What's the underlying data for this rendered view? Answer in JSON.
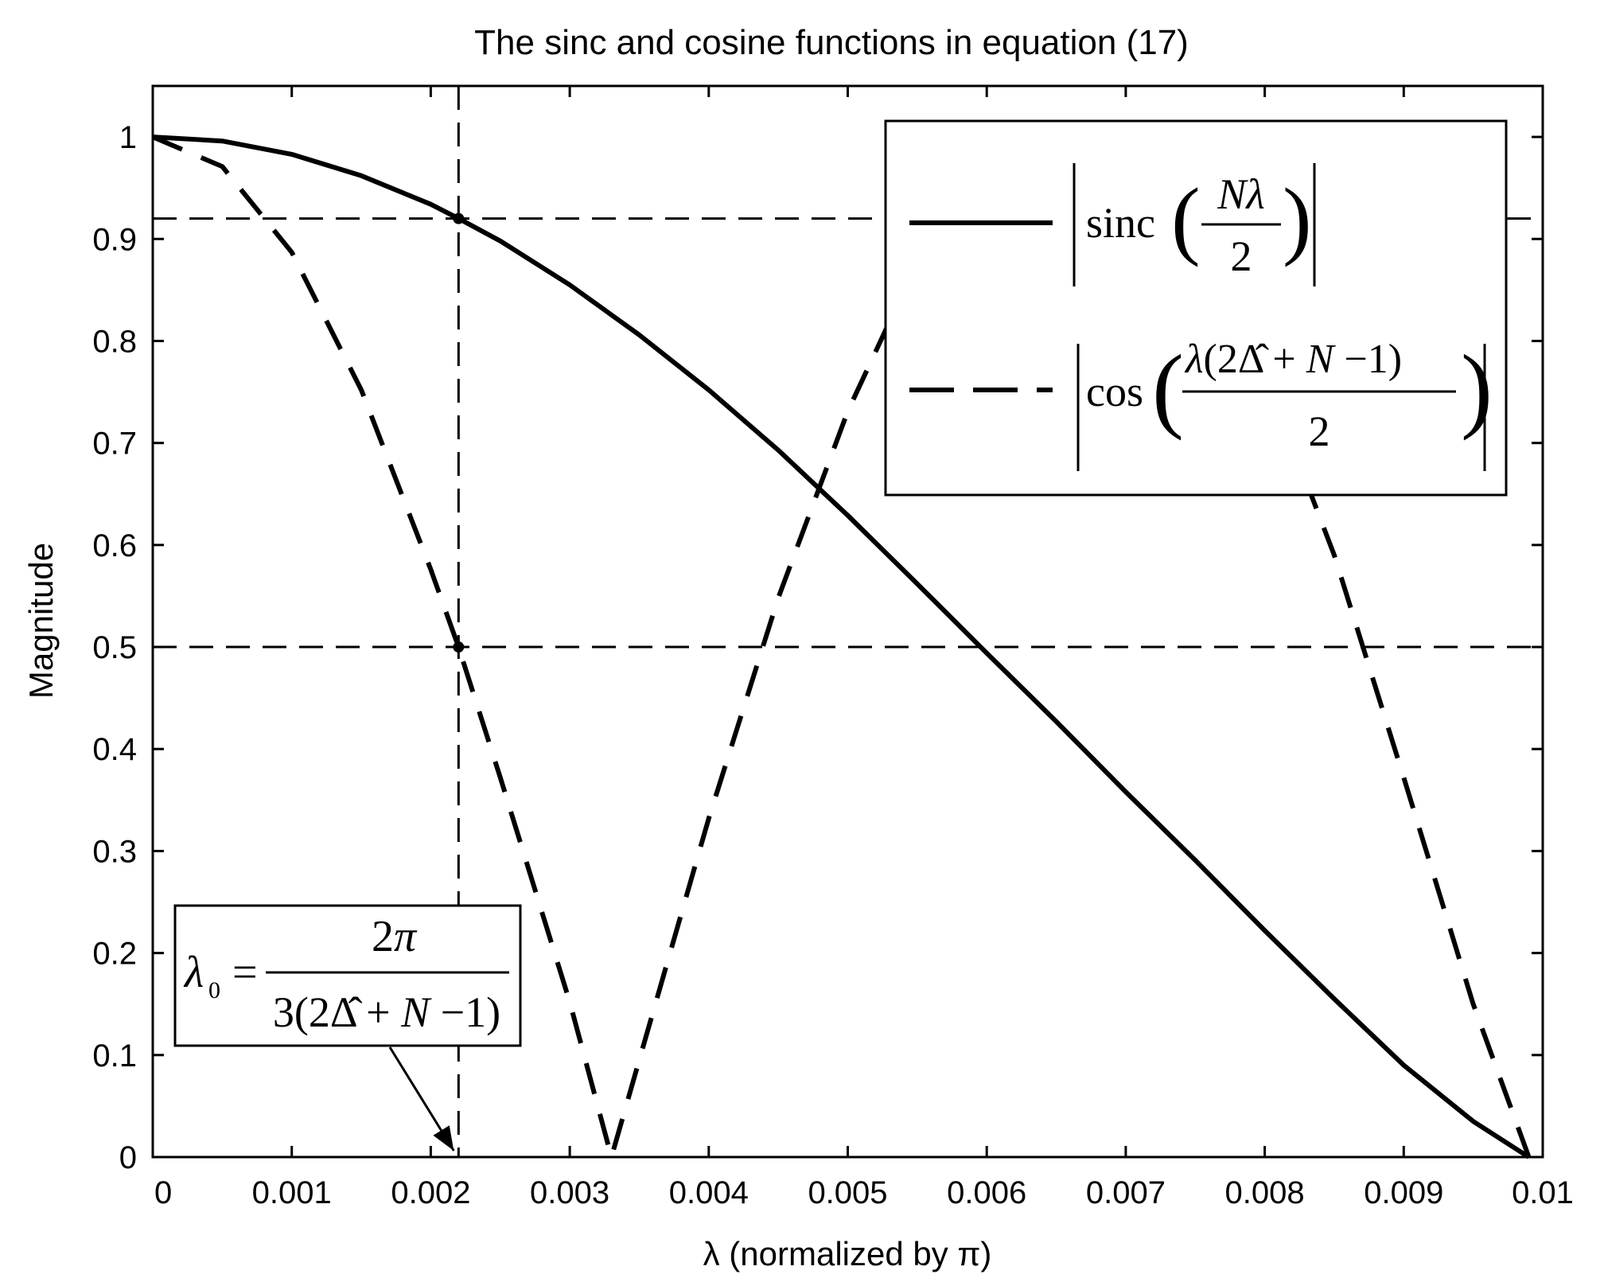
{
  "chart_data": {
    "type": "line",
    "title": "The sinc and cosine functions in equation (17)",
    "xlabel": "λ  (normalized by π)",
    "ylabel": "Magnitude",
    "xlim": [
      0,
      0.01
    ],
    "ylim": [
      0,
      1.05
    ],
    "x_ticks": [
      "0",
      "0.001",
      "0.002",
      "0.003",
      "0.004",
      "0.005",
      "0.006",
      "0.007",
      "0.008",
      "0.009",
      "0.01"
    ],
    "y_ticks": [
      "0",
      "0.1",
      "0.2",
      "0.3",
      "0.4",
      "0.5",
      "0.6",
      "0.7",
      "0.8",
      "0.9",
      "1"
    ],
    "grid": false,
    "legend_position": "top-right",
    "series": [
      {
        "name": "|sinc(Nλ/2)|",
        "style": "solid",
        "x": [
          0,
          0.0005,
          0.001,
          0.0015,
          0.002,
          0.0022,
          0.0025,
          0.003,
          0.0035,
          0.004,
          0.0045,
          0.005,
          0.0055,
          0.006,
          0.0065,
          0.007,
          0.0075,
          0.008,
          0.0085,
          0.009,
          0.0095,
          0.0099
        ],
        "values": [
          1.0,
          0.996,
          0.983,
          0.962,
          0.934,
          0.92,
          0.898,
          0.855,
          0.806,
          0.752,
          0.693,
          0.629,
          0.562,
          0.494,
          0.427,
          0.358,
          0.291,
          0.222,
          0.155,
          0.09,
          0.035,
          0.0
        ]
      },
      {
        "name": "|cos(λ(2Δ̂+N−1)/2)|",
        "style": "dashed",
        "x": [
          0,
          0.0005,
          0.001,
          0.0015,
          0.002,
          0.0022,
          0.0025,
          0.003,
          0.0033,
          0.0035,
          0.004,
          0.0045,
          0.005,
          0.0055,
          0.006,
          0.0066,
          0.007,
          0.0075,
          0.008,
          0.0085,
          0.009,
          0.0095,
          0.0099
        ],
        "values": [
          1.0,
          0.971,
          0.887,
          0.752,
          0.576,
          0.5,
          0.372,
          0.152,
          0.0,
          0.095,
          0.332,
          0.548,
          0.731,
          0.877,
          0.968,
          1.0,
          0.981,
          0.9,
          0.768,
          0.59,
          0.372,
          0.15,
          0.0
        ]
      }
    ],
    "reference_lines": [
      {
        "orientation": "horizontal",
        "y": 0.92
      },
      {
        "orientation": "horizontal",
        "y": 0.5
      },
      {
        "orientation": "vertical",
        "x": 0.0022
      }
    ],
    "annotation": {
      "lambda0_x": 0.0022
    }
  }
}
